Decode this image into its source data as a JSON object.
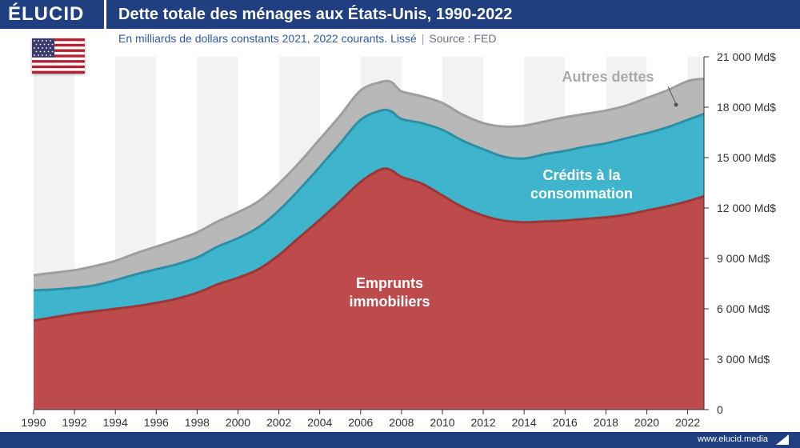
{
  "header": {
    "logo": "ÉLUCID",
    "title": "Dette totale des ménages aux États-Unis, 1990-2022"
  },
  "subtitle": {
    "text": "En milliards de dollars constants 2021, 2022 courants. Lissé",
    "source": "Source : FED"
  },
  "footer": {
    "url": "www.elucid.media"
  },
  "colors": {
    "immobilier": "#bd4b4b",
    "consommation": "#3eb5cc",
    "autres": "#b8b8b8",
    "header": "#1f3f80"
  },
  "chart_data": {
    "type": "area",
    "stacked": true,
    "x": [
      1990,
      1991,
      1992,
      1993,
      1994,
      1995,
      1996,
      1997,
      1998,
      1999,
      2000,
      2001,
      2002,
      2003,
      2004,
      2005,
      2006,
      2007,
      2007.5,
      2008,
      2009,
      2010,
      2011,
      2012,
      2013,
      2014,
      2015,
      2016,
      2017,
      2018,
      2019,
      2020,
      2021,
      2022,
      2022.8
    ],
    "xlim": [
      1990,
      2022.8
    ],
    "ylim": [
      0,
      21000
    ],
    "xticks": [
      "1990",
      "1992",
      "1994",
      "1996",
      "1998",
      "2000",
      "2002",
      "2004",
      "2006",
      "2008",
      "2010",
      "2012",
      "2014",
      "2016",
      "2018",
      "2020",
      "2022"
    ],
    "yticks": [
      "0",
      "3 000 Md$",
      "6 000 Md$",
      "9 000 Md$",
      "12 000 Md$",
      "15 000 Md$",
      "18 000 Md$",
      "21 000 Md$"
    ],
    "series": [
      {
        "name": "Emprunts immobiliers",
        "values": [
          5300,
          5500,
          5700,
          5850,
          6000,
          6150,
          6350,
          6600,
          6950,
          7450,
          7850,
          8350,
          9200,
          10250,
          11300,
          12400,
          13550,
          14300,
          14250,
          13850,
          13450,
          12750,
          12050,
          11550,
          11250,
          11150,
          11200,
          11250,
          11350,
          11450,
          11600,
          11850,
          12100,
          12400,
          12700
        ]
      },
      {
        "name": "Crédits à la consommation",
        "values": [
          1800,
          1650,
          1550,
          1550,
          1700,
          1900,
          2000,
          2050,
          2100,
          2250,
          2350,
          2500,
          2650,
          2850,
          3150,
          3450,
          3700,
          3500,
          3500,
          3450,
          3600,
          3900,
          3950,
          3950,
          3800,
          3800,
          4000,
          4150,
          4300,
          4400,
          4550,
          4600,
          4700,
          4850,
          4900
        ]
      },
      {
        "name": "Autres dettes",
        "values": [
          900,
          1000,
          1050,
          1150,
          1150,
          1250,
          1350,
          1450,
          1500,
          1500,
          1550,
          1550,
          1600,
          1600,
          1650,
          1650,
          1750,
          1700,
          1750,
          1650,
          1600,
          1600,
          1550,
          1550,
          1800,
          1950,
          1950,
          2000,
          1950,
          1950,
          1950,
          2100,
          2200,
          2300,
          2100
        ]
      }
    ],
    "labels": {
      "immobilier": [
        "Emprunts",
        "immobiliers"
      ],
      "consommation": [
        "Crédits à la",
        "consommation"
      ],
      "autres": "Autres dettes"
    },
    "grid": "alternating vertical bands",
    "y_axis_position": "right"
  }
}
